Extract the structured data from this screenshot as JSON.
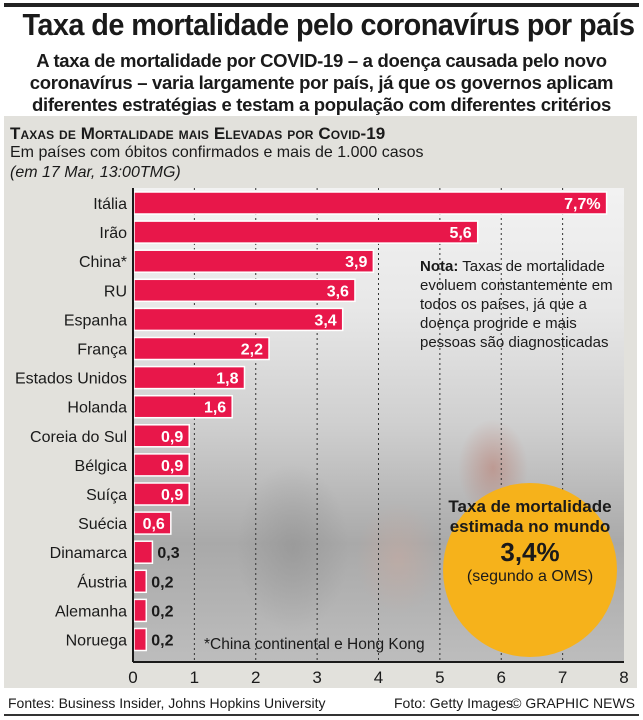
{
  "header": {
    "title": "Taxa de mortalidade pelo coronavírus por país",
    "subtitle": "A taxa de mortalidade por COVID-19 – a doença causada pelo novo coronavírus – varia largamente por país, já que os governos aplicam diferentes estratégias e testam a população com diferentes critérios"
  },
  "panel": {
    "title": "Taxas de Mortalidade mais Elevadas por Covid-19",
    "subtitle": "Em países com óbitos confirmados e mais de 1.000 casos",
    "date": "(em 17 Mar, 13:00TMG)"
  },
  "note": {
    "bold": "Nota:",
    "text": " Taxas de mortalidade evoluem constantemente em todos os países, já que a doença progride e mais pessoas são diagnosticadas"
  },
  "footnote": "*China continental e Hong Kong",
  "callout": {
    "line1": "Taxa de mortalidade estimada no mundo",
    "value": "3,4%",
    "line2": "(segundo a OMS)",
    "color": "#f6b21b"
  },
  "footer": {
    "sources": "Fontes: Business Insider, Johns Hopkins University",
    "photo": "Foto: Getty Images",
    "credit": "© GRAPHIC NEWS"
  },
  "colors": {
    "bar": "#e8174a",
    "panel_bg": "#e2e1dc"
  },
  "chart_data": {
    "type": "bar",
    "orientation": "horizontal",
    "title": "Taxas de Mortalidade mais Elevadas por Covid-19",
    "xlabel": "",
    "ylabel": "",
    "xlim": [
      0,
      8
    ],
    "xticks": [
      0,
      1,
      2,
      3,
      4,
      5,
      6,
      7,
      8
    ],
    "grid": "vertical-dotted",
    "categories": [
      "Itália",
      "Irão",
      "China*",
      "RU",
      "Espanha",
      "França",
      "Estados Unidos",
      "Holanda",
      "Coreia do Sul",
      "Bélgica",
      "Suíça",
      "Suécia",
      "Dinamarca",
      "Áustria",
      "Alemanha",
      "Noruega"
    ],
    "values": [
      7.7,
      5.6,
      3.9,
      3.6,
      3.4,
      2.2,
      1.8,
      1.6,
      0.9,
      0.9,
      0.9,
      0.6,
      0.3,
      0.2,
      0.2,
      0.2
    ],
    "value_labels": [
      "7,7%",
      "5,6",
      "3,9",
      "3,6",
      "3,4",
      "2,2",
      "1,8",
      "1,6",
      "0,9",
      "0,9",
      "0,9",
      "0,6",
      "0,3",
      "0,2",
      "0,2",
      "0,2"
    ],
    "unit": "%"
  }
}
